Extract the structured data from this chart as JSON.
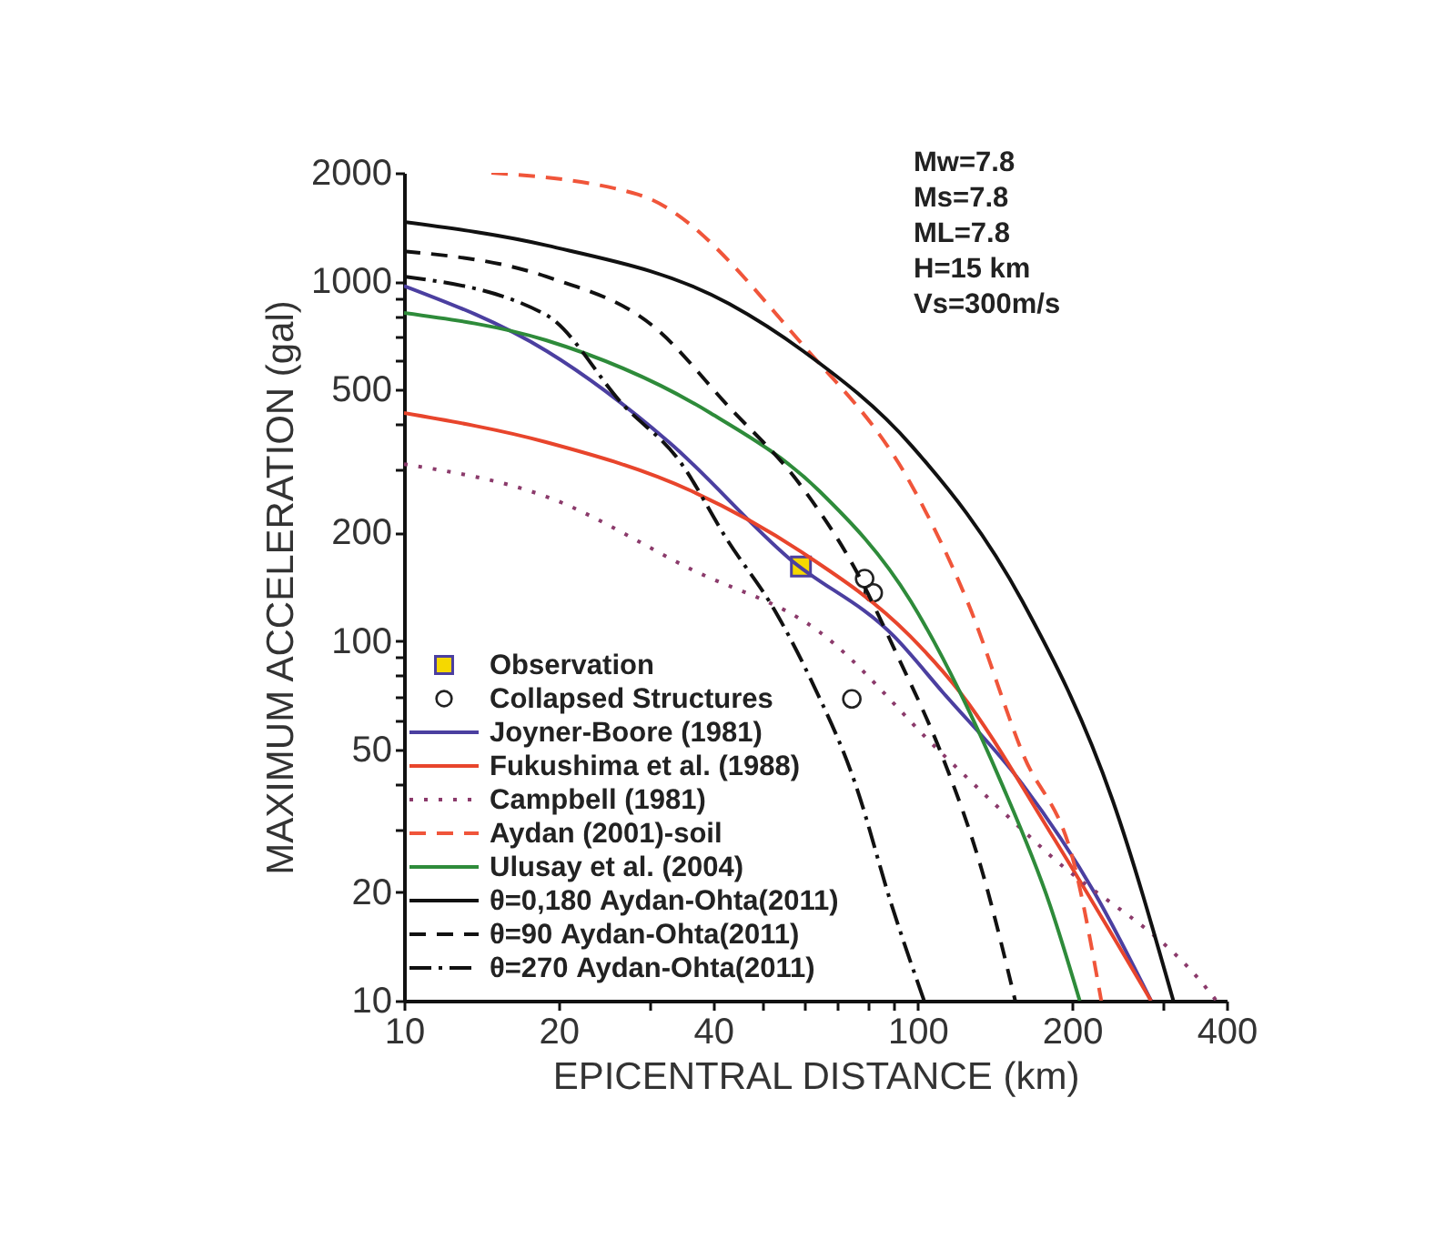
{
  "chart_data": {
    "type": "line",
    "xlabel": "EPICENTRAL DISTANCE (km)",
    "ylabel": "MAXIMUM ACCELERATION (gal)",
    "log": "xy",
    "grid": false,
    "legend": "bottom left",
    "xlim": [
      10,
      400
    ],
    "ylim": [
      10,
      2000
    ],
    "xticks": [
      10,
      20,
      {
        "value": 30,
        "label": null
      },
      40,
      {
        "value": 50,
        "label": null
      },
      {
        "value": 60,
        "label": null
      },
      {
        "value": 70,
        "label": null
      },
      {
        "value": 80,
        "label": null
      },
      {
        "value": 90,
        "label": null
      },
      100,
      200,
      {
        "value": 300,
        "label": null
      },
      400
    ],
    "yticks": [
      10,
      20,
      {
        "value": 30,
        "label": null
      },
      {
        "value": 40,
        "label": null
      },
      50,
      {
        "value": 60,
        "label": null
      },
      {
        "value": 70,
        "label": null
      },
      {
        "value": 80,
        "label": null
      },
      {
        "value": 90,
        "label": null
      },
      100,
      200,
      {
        "value": 300,
        "label": null
      },
      {
        "value": 400,
        "label": null
      },
      500,
      {
        "value": 600,
        "label": null
      },
      {
        "value": 700,
        "label": null
      },
      {
        "value": 800,
        "label": null
      },
      {
        "value": 900,
        "label": null
      },
      1000,
      2000
    ],
    "annotations": [
      "Mw=7.8",
      "Ms=7.8",
      "ML=7.8",
      "H=15 km",
      "Vs=300m/s"
    ],
    "series": [
      {
        "name": "Observation",
        "type": "scatter",
        "marker": "square",
        "color": "#f5d800",
        "x": [
          59.3
        ],
        "values": [
          161
        ]
      },
      {
        "name": "Collapsed Structures",
        "type": "scatter",
        "marker": "circle",
        "color": "#222222",
        "x": [
          78.9,
          82,
          74.5
        ],
        "values": [
          149,
          136,
          69
        ]
      },
      {
        "name": "Joyner-Boore (1981)",
        "line_style": "solid",
        "color": "#4b3fa0",
        "x": [
          10,
          19,
          32.8,
          56.4,
          90,
          112,
          160,
          221,
          285
        ],
        "values": [
          970,
          638,
          357,
          169,
          103,
          72,
          40,
          20,
          10
        ]
      },
      {
        "name": "Fukushima et al. (1988)",
        "line_style": "solid",
        "color": "#e8452c",
        "x": [
          10,
          18.9,
          36.3,
          59.3,
          96.8,
          121,
          181,
          285
        ],
        "values": [
          430,
          357,
          261,
          177,
          103,
          72,
          29.5,
          10
        ]
      },
      {
        "name": "Campbell (1981)",
        "line_style": "dotted",
        "color": "#8b3a6b",
        "x": [
          10,
          18.9,
          36.3,
          64.4,
          111,
          181,
          366,
          382
        ],
        "values": [
          310,
          252,
          158,
          106,
          49,
          25.4,
          10.8,
          10
        ]
      },
      {
        "name": "Aydan (2001)-soil",
        "line_style": "dashed",
        "color": "#f0553a",
        "x": [
          14.8,
          28.6,
          60,
          97.5,
          125,
          160,
          204,
          228
        ],
        "values": [
          2000,
          1740,
          661,
          270,
          129,
          49,
          22.6,
          10
        ]
      },
      {
        "name": "Ulusay et al. (2004)",
        "line_style": "solid",
        "color": "#2e8b3a",
        "x": [
          10,
          18.9,
          39.5,
          64.4,
          97,
          121,
          146,
          181,
          207
        ],
        "values": [
          816,
          685,
          430,
          261,
          129,
          72,
          40,
          18.5,
          10
        ]
      },
      {
        "name": "θ=0,180 Aydan-Ohta(2011)",
        "line_style": "solid",
        "color": "#111111",
        "x": [
          10,
          19,
          43,
          60,
          97.5,
          160,
          240,
          315
        ],
        "values": [
          1460,
          1256,
          865,
          638,
          348,
          129,
          36,
          10
        ]
      },
      {
        "name": "θ=90 Aydan-Ohta(2011)",
        "line_style": "dashed",
        "color": "#111111",
        "x": [
          10,
          18.9,
          30.8,
          42.7,
          59.3,
          75.7,
          91.4,
          111,
          134,
          155
        ],
        "values": [
          1211,
          1030,
          743,
          451,
          270,
          158,
          91,
          49,
          22.6,
          10
        ]
      },
      {
        "name": "θ=270 Aydan-Ohta(2011)",
        "line_style": "dashdot",
        "color": "#111111",
        "x": [
          10,
          18.9,
          26.8,
          34.3,
          42.7,
          53,
          62,
          75.7,
          89,
          103
        ],
        "values": [
          1030,
          806,
          451,
          318,
          190,
          120,
          78,
          40,
          18.5,
          10
        ]
      }
    ]
  }
}
